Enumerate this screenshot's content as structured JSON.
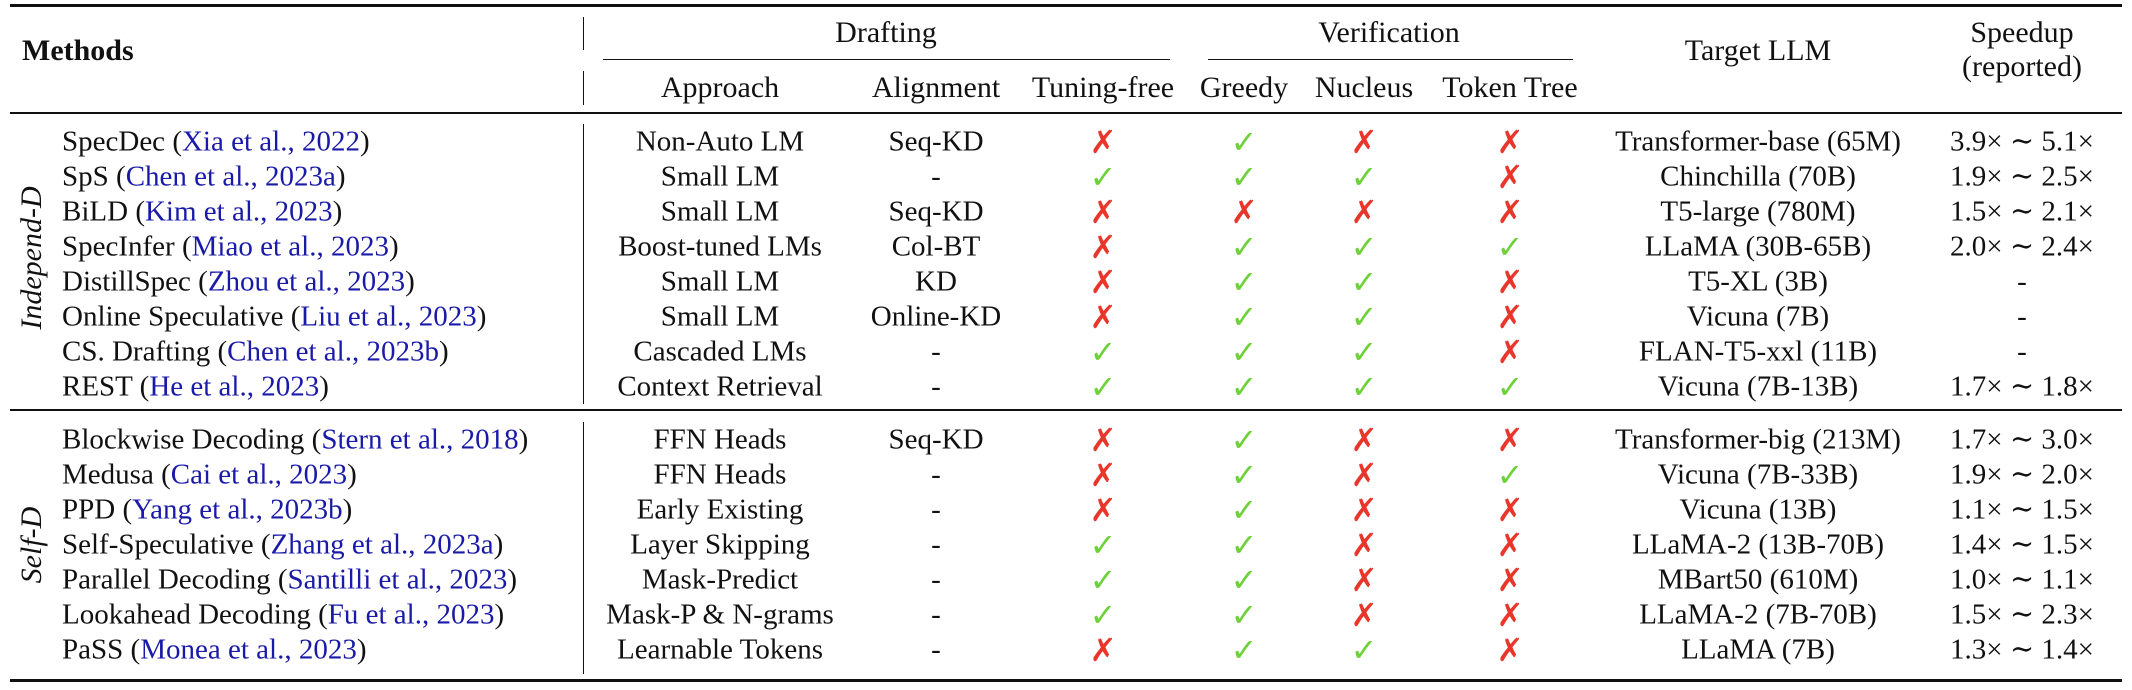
{
  "table": {
    "headers": {
      "methods": "Methods",
      "drafting": "Drafting",
      "verification": "Verification",
      "approach": "Approach",
      "alignment": "Alignment",
      "tuning_free": "Tuning-free",
      "greedy": "Greedy",
      "nucleus": "Nucleus",
      "token_tree": "Token Tree",
      "target_llm": "Target LLM",
      "speedup_line1": "Speedup",
      "speedup_line2": "(reported)"
    },
    "marks": {
      "yes": "✓",
      "no": "✗"
    },
    "colors": {
      "yes": "#6fd13a",
      "no": "#e8362b",
      "citation": "#1a1aa8"
    },
    "groups": [
      {
        "label": "Independ-D",
        "rows": [
          {
            "method": "SpecDec",
            "cite": "Xia et al., 2022",
            "approach": "Non-Auto LM",
            "alignment": "Seq-KD",
            "tuning_free": false,
            "greedy": true,
            "nucleus": false,
            "token_tree": false,
            "target": "Transformer-base (65M)",
            "speedup": "3.9× ∼ 5.1×"
          },
          {
            "method": "SpS",
            "cite": "Chen et al., 2023a",
            "approach": "Small LM",
            "alignment": "-",
            "tuning_free": true,
            "greedy": true,
            "nucleus": true,
            "token_tree": false,
            "target": "Chinchilla (70B)",
            "speedup": "1.9× ∼ 2.5×"
          },
          {
            "method": "BiLD",
            "cite": "Kim et al., 2023",
            "approach": "Small LM",
            "alignment": "Seq-KD",
            "tuning_free": false,
            "greedy": false,
            "nucleus": false,
            "token_tree": false,
            "target": "T5-large (780M)",
            "speedup": "1.5× ∼ 2.1×"
          },
          {
            "method": "SpecInfer",
            "cite": "Miao et al., 2023",
            "approach": "Boost-tuned LMs",
            "alignment": "Col-BT",
            "tuning_free": false,
            "greedy": true,
            "nucleus": true,
            "token_tree": true,
            "target": "LLaMA (30B-65B)",
            "speedup": "2.0× ∼ 2.4×"
          },
          {
            "method": "DistillSpec",
            "cite": "Zhou et al., 2023",
            "approach": "Small LM",
            "alignment": "KD",
            "tuning_free": false,
            "greedy": true,
            "nucleus": true,
            "token_tree": false,
            "target": "T5-XL (3B)",
            "speedup": "-"
          },
          {
            "method": "Online Speculative",
            "cite": "Liu et al., 2023",
            "approach": "Small LM",
            "alignment": "Online-KD",
            "tuning_free": false,
            "greedy": true,
            "nucleus": true,
            "token_tree": false,
            "target": "Vicuna (7B)",
            "speedup": "-"
          },
          {
            "method": "CS. Drafting",
            "cite": "Chen et al., 2023b",
            "approach": "Cascaded LMs",
            "alignment": "-",
            "tuning_free": true,
            "greedy": true,
            "nucleus": true,
            "token_tree": false,
            "target": "FLAN-T5-xxl (11B)",
            "speedup": "-"
          },
          {
            "method": "REST",
            "cite": "He et al., 2023",
            "approach": "Context Retrieval",
            "alignment": "-",
            "tuning_free": true,
            "greedy": true,
            "nucleus": true,
            "token_tree": true,
            "target": "Vicuna (7B-13B)",
            "speedup": "1.7× ∼ 1.8×"
          }
        ]
      },
      {
        "label": "Self-D",
        "rows": [
          {
            "method": "Blockwise Decoding",
            "cite": "Stern et al., 2018",
            "approach": "FFN Heads",
            "alignment": "Seq-KD",
            "tuning_free": false,
            "greedy": true,
            "nucleus": false,
            "token_tree": false,
            "target": "Transformer-big (213M)",
            "speedup": "1.7× ∼ 3.0×"
          },
          {
            "method": "Medusa",
            "cite": "Cai et al., 2023",
            "approach": "FFN Heads",
            "alignment": "-",
            "tuning_free": false,
            "greedy": true,
            "nucleus": false,
            "token_tree": true,
            "target": "Vicuna (7B-33B)",
            "speedup": "1.9× ∼ 2.0×"
          },
          {
            "method": "PPD",
            "cite": "Yang et al., 2023b",
            "approach": "Early Existing",
            "alignment": "-",
            "tuning_free": false,
            "greedy": true,
            "nucleus": false,
            "token_tree": false,
            "target": "Vicuna (13B)",
            "speedup": "1.1× ∼ 1.5×"
          },
          {
            "method": "Self-Speculative",
            "cite": "Zhang et al., 2023a",
            "approach": "Layer Skipping",
            "alignment": "-",
            "tuning_free": true,
            "greedy": true,
            "nucleus": false,
            "token_tree": false,
            "target": "LLaMA-2 (13B-70B)",
            "speedup": "1.4× ∼ 1.5×"
          },
          {
            "method": "Parallel Decoding",
            "cite": "Santilli et al., 2023",
            "approach": "Mask-Predict",
            "alignment": "-",
            "tuning_free": true,
            "greedy": true,
            "nucleus": false,
            "token_tree": false,
            "target": "MBart50 (610M)",
            "speedup": "1.0× ∼ 1.1×"
          },
          {
            "method": "Lookahead Decoding",
            "cite": "Fu et al., 2023",
            "approach": "Mask-P & N-grams",
            "alignment": "-",
            "tuning_free": true,
            "greedy": true,
            "nucleus": false,
            "token_tree": false,
            "target": "LLaMA-2 (7B-70B)",
            "speedup": "1.5× ∼ 2.3×"
          },
          {
            "method": "PaSS",
            "cite": "Monea et al., 2023",
            "approach": "Learnable Tokens",
            "alignment": "-",
            "tuning_free": false,
            "greedy": true,
            "nucleus": true,
            "token_tree": false,
            "target": "LLaMA (7B)",
            "speedup": "1.3× ∼ 1.4×"
          }
        ]
      }
    ]
  }
}
